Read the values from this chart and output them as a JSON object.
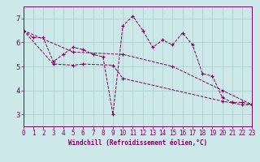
{
  "xlabel": "Windchill (Refroidissement éolien,°C)",
  "xlim": [
    0,
    23
  ],
  "ylim": [
    2.5,
    7.5
  ],
  "yticks": [
    3,
    4,
    5,
    6,
    7
  ],
  "xticks": [
    0,
    1,
    2,
    3,
    4,
    5,
    6,
    7,
    8,
    9,
    10,
    11,
    12,
    13,
    14,
    15,
    16,
    17,
    18,
    19,
    20,
    21,
    22,
    23
  ],
  "bg_color": "#cce8e8",
  "line_color": "#800060",
  "line1_x": [
    0,
    1,
    2,
    3,
    4,
    5,
    6,
    7,
    8,
    9,
    10,
    11,
    12,
    13,
    14,
    15,
    16,
    17,
    18,
    19,
    20,
    21,
    22,
    23
  ],
  "line1_y": [
    6.5,
    6.2,
    6.2,
    5.2,
    5.5,
    5.8,
    5.7,
    5.5,
    5.4,
    3.0,
    6.7,
    7.1,
    6.5,
    5.8,
    6.1,
    5.9,
    6.4,
    5.9,
    4.7,
    4.6,
    3.7,
    3.5,
    3.5,
    3.4
  ],
  "line2_x": [
    0,
    3,
    5,
    6,
    9,
    10,
    20,
    22,
    23
  ],
  "line2_y": [
    6.5,
    5.1,
    5.05,
    5.1,
    5.05,
    4.5,
    3.55,
    3.4,
    3.4
  ],
  "line3_x": [
    0,
    5,
    10,
    15,
    20,
    23
  ],
  "line3_y": [
    6.5,
    5.6,
    5.5,
    5.0,
    4.0,
    3.4
  ],
  "grid_color": "#aacccc",
  "xlabel_fontsize": 5.5,
  "tick_fontsize": 5.5,
  "ytick_fontsize": 6.5
}
